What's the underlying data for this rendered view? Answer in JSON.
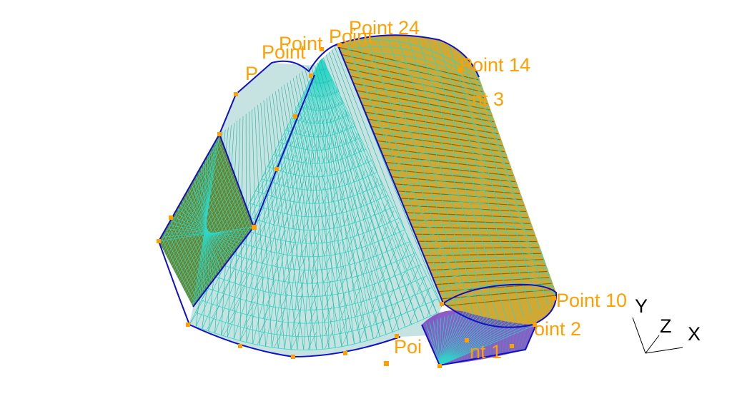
{
  "scene": {
    "background": "#ffffff",
    "colors": {
      "label": "#ff9f00",
      "marker": "#ff9f00",
      "edge": "#1010c8",
      "mesh_primary": "#2fd6c8",
      "mesh_secondary": "#1fb0a0",
      "fill_olive": "#5a6a00",
      "fill_gold": "#c89a10",
      "fill_purple": "#7a40c0",
      "axes": "#000000"
    },
    "point_labels": [
      "Point 24",
      "Point",
      "Point",
      "Point",
      "P",
      "Point 14",
      "nt 3",
      "Point 10",
      "oint 2",
      "Poi",
      "nt 1"
    ],
    "axes_labels": {
      "x": "X",
      "y": "Y",
      "z": "Z"
    }
  }
}
